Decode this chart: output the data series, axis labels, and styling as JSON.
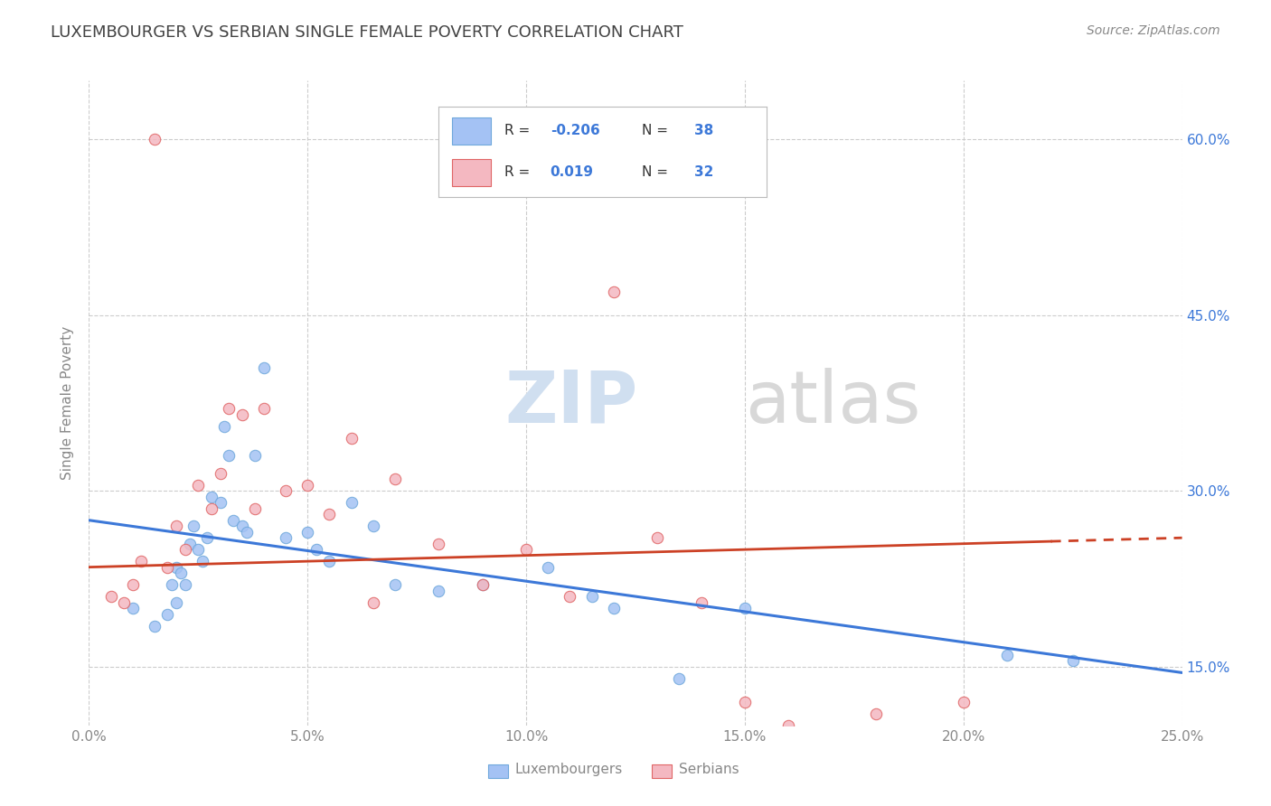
{
  "title": "LUXEMBOURGER VS SERBIAN SINGLE FEMALE POVERTY CORRELATION CHART",
  "source": "Source: ZipAtlas.com",
  "xlim": [
    0.0,
    25.0
  ],
  "ylim": [
    10.0,
    65.0
  ],
  "ylabel": "Single Female Poverty",
  "legend_labels": [
    "Luxembourgers",
    "Serbians"
  ],
  "legend_r": [
    -0.206,
    0.019
  ],
  "legend_n": [
    38,
    32
  ],
  "blue_color": "#a4c2f4",
  "pink_color": "#f4b8c1",
  "blue_scatter_edge": "#6fa8dc",
  "pink_scatter_edge": "#e06666",
  "blue_line_color": "#3c78d8",
  "pink_line_color": "#cc4125",
  "title_color": "#434343",
  "source_color": "#888888",
  "axis_color": "#888888",
  "grid_color": "#cccccc",
  "blue_scatter_x": [
    1.0,
    1.5,
    1.8,
    1.9,
    2.0,
    2.0,
    2.1,
    2.2,
    2.3,
    2.4,
    2.5,
    2.6,
    2.7,
    2.8,
    3.0,
    3.1,
    3.2,
    3.3,
    3.5,
    3.6,
    3.8,
    4.0,
    4.5,
    5.0,
    5.2,
    5.5,
    6.0,
    6.5,
    7.0,
    8.0,
    9.0,
    10.5,
    11.5,
    12.0,
    13.5,
    15.0,
    21.0,
    22.5
  ],
  "blue_scatter_y": [
    20.0,
    18.5,
    19.5,
    22.0,
    20.5,
    23.5,
    23.0,
    22.0,
    25.5,
    27.0,
    25.0,
    24.0,
    26.0,
    29.5,
    29.0,
    35.5,
    33.0,
    27.5,
    27.0,
    26.5,
    33.0,
    40.5,
    26.0,
    26.5,
    25.0,
    24.0,
    29.0,
    27.0,
    22.0,
    21.5,
    22.0,
    23.5,
    21.0,
    20.0,
    14.0,
    20.0,
    16.0,
    15.5
  ],
  "pink_scatter_x": [
    0.5,
    0.8,
    1.0,
    1.2,
    1.5,
    1.8,
    2.0,
    2.2,
    2.5,
    2.8,
    3.0,
    3.2,
    3.5,
    3.8,
    4.0,
    4.5,
    5.0,
    5.5,
    6.0,
    6.5,
    7.0,
    8.0,
    9.0,
    10.0,
    11.0,
    12.0,
    13.0,
    14.0,
    15.0,
    16.0,
    18.0,
    20.0
  ],
  "pink_scatter_y": [
    21.0,
    20.5,
    22.0,
    24.0,
    60.0,
    23.5,
    27.0,
    25.0,
    30.5,
    28.5,
    31.5,
    37.0,
    36.5,
    28.5,
    37.0,
    30.0,
    30.5,
    28.0,
    34.5,
    20.5,
    31.0,
    25.5,
    22.0,
    25.0,
    21.0,
    47.0,
    26.0,
    20.5,
    12.0,
    10.0,
    11.0,
    12.0
  ],
  "blue_line_x": [
    0.0,
    25.0
  ],
  "blue_line_y": [
    27.5,
    14.5
  ],
  "pink_line_x": [
    0.0,
    25.0
  ],
  "pink_line_y": [
    23.5,
    26.0
  ],
  "ytick_vals": [
    15,
    30,
    45,
    60
  ],
  "xtick_vals": [
    0,
    5,
    10,
    15,
    20,
    25
  ]
}
